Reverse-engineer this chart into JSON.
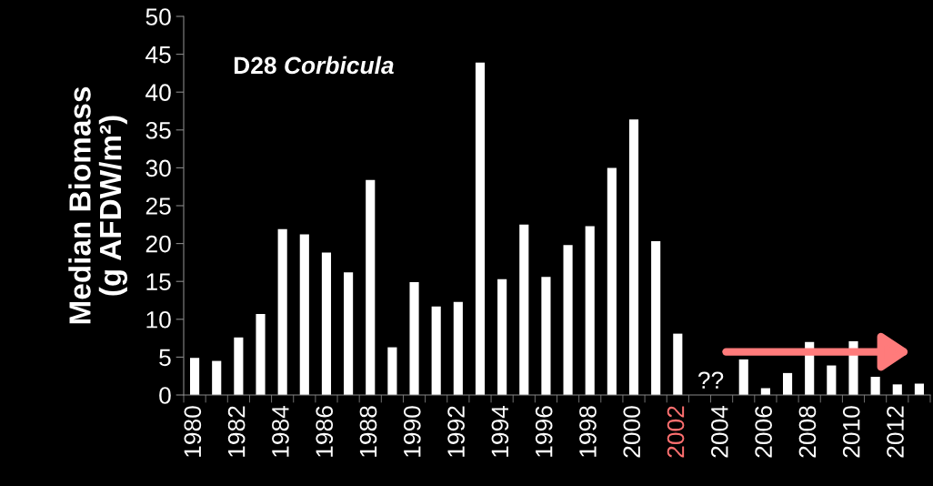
{
  "chart_data": {
    "type": "bar",
    "title": "D28 Corbicula",
    "ylabel": "Median Biomass\n(g AFDW/m²)",
    "categories": [
      "1980",
      null,
      "1982",
      null,
      "1984",
      null,
      "1986",
      null,
      "1988",
      null,
      "1990",
      null,
      "1992",
      null,
      "1994",
      null,
      "1996",
      null,
      "1998",
      null,
      "2000",
      null,
      "2002",
      null,
      "2004",
      null,
      "2006",
      null,
      "2008",
      null,
      "2010",
      null,
      "2012",
      null
    ],
    "values": [
      4.9,
      4.5,
      7.6,
      10.7,
      21.9,
      21.2,
      18.8,
      16.2,
      28.4,
      6.3,
      14.9,
      11.7,
      12.3,
      43.9,
      15.3,
      22.5,
      15.6,
      19.8,
      22.3,
      30.0,
      36.4,
      20.3,
      8.1,
      null,
      null,
      4.7,
      0.9,
      2.9,
      7.0,
      3.9,
      7.1,
      2.4,
      1.4,
      1.5
    ],
    "color": "#ffffff",
    "ylim": [
      0,
      50
    ],
    "yticks": [
      0,
      5,
      10,
      15,
      20,
      25,
      30,
      35,
      40,
      45,
      50
    ],
    "annotations": [
      "??"
    ],
    "grid": false
  }
}
